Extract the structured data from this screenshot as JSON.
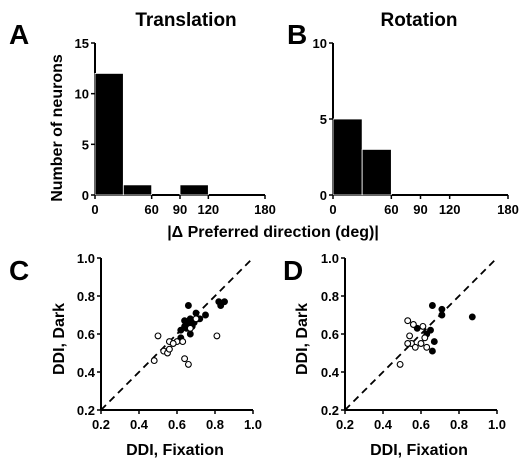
{
  "panels": {
    "a": {
      "letter": "A",
      "title": "Translation"
    },
    "b": {
      "letter": "B",
      "title": "Rotation"
    },
    "c": {
      "letter": "C"
    },
    "d": {
      "letter": "D"
    }
  },
  "labels": {
    "hist_ylabel": "Number of neurons",
    "hist_xlabel": "|Δ Preferred direction (deg)|",
    "scatter_xlabel": "DDI, Fixation",
    "scatter_ylabel": "DDI, Dark"
  },
  "chart_data": [
    {
      "panel": "A",
      "type": "bar",
      "title": "Translation",
      "xlabel": "|Δ Preferred direction (deg)|",
      "ylabel": "Number of neurons",
      "bin_width": 30,
      "bins": [
        {
          "start": 0,
          "end": 30,
          "count": 12
        },
        {
          "start": 30,
          "end": 60,
          "count": 1
        },
        {
          "start": 60,
          "end": 90,
          "count": 0
        },
        {
          "start": 90,
          "end": 120,
          "count": 1
        },
        {
          "start": 120,
          "end": 150,
          "count": 0
        },
        {
          "start": 150,
          "end": 180,
          "count": 0
        }
      ],
      "xlim": [
        0,
        180
      ],
      "ylim": [
        0,
        15
      ],
      "xticks": [
        "0",
        "60",
        "90",
        "120",
        "180"
      ],
      "xtick_values": [
        0,
        60,
        90,
        120,
        180
      ],
      "yticks": [
        "0",
        "5",
        "10",
        "15"
      ],
      "ytick_values": [
        0,
        5,
        10,
        15
      ],
      "bar_color": "#000000"
    },
    {
      "panel": "B",
      "type": "bar",
      "title": "Rotation",
      "xlabel": "|Δ Preferred direction (deg)|",
      "ylabel": "Number of neurons",
      "bin_width": 30,
      "bins": [
        {
          "start": 0,
          "end": 30,
          "count": 5
        },
        {
          "start": 30,
          "end": 60,
          "count": 3
        },
        {
          "start": 60,
          "end": 90,
          "count": 0
        },
        {
          "start": 90,
          "end": 120,
          "count": 0
        },
        {
          "start": 120,
          "end": 150,
          "count": 0
        },
        {
          "start": 150,
          "end": 180,
          "count": 0
        }
      ],
      "xlim": [
        0,
        180
      ],
      "ylim": [
        0,
        10
      ],
      "xticks": [
        "0",
        "60",
        "90",
        "120",
        "180"
      ],
      "xtick_values": [
        0,
        60,
        90,
        120,
        180
      ],
      "yticks": [
        "0",
        "5",
        "10"
      ],
      "ytick_values": [
        0,
        5,
        10
      ],
      "bar_color": "#000000"
    },
    {
      "panel": "C",
      "type": "scatter",
      "xlabel": "DDI, Fixation",
      "ylabel": "DDI, Dark",
      "xlim": [
        0.2,
        1.0
      ],
      "ylim": [
        0.2,
        1.0
      ],
      "xticks": [
        "0.2",
        "0.4",
        "0.6",
        "0.8",
        "1.0"
      ],
      "xtick_values": [
        0.2,
        0.4,
        0.6,
        0.8,
        1.0
      ],
      "yticks": [
        "0.2",
        "0.4",
        "0.6",
        "0.8",
        "1.0"
      ],
      "ytick_values": [
        0.2,
        0.4,
        0.6,
        0.8,
        1.0
      ],
      "unity_line": true,
      "series": [
        {
          "marker": "filled",
          "points": [
            [
              0.66,
              0.75
            ],
            [
              0.7,
              0.71
            ],
            [
              0.71,
              0.68
            ],
            [
              0.69,
              0.66
            ],
            [
              0.67,
              0.68
            ],
            [
              0.66,
              0.66
            ],
            [
              0.68,
              0.64
            ],
            [
              0.65,
              0.63
            ],
            [
              0.64,
              0.64
            ],
            [
              0.67,
              0.6
            ],
            [
              0.62,
              0.62
            ],
            [
              0.64,
              0.67
            ],
            [
              0.72,
              0.68
            ],
            [
              0.75,
              0.7
            ],
            [
              0.83,
              0.75
            ],
            [
              0.85,
              0.77
            ],
            [
              0.82,
              0.77
            ],
            [
              0.62,
              0.58
            ]
          ]
        },
        {
          "marker": "open",
          "points": [
            [
              0.5,
              0.59
            ],
            [
              0.48,
              0.46
            ],
            [
              0.53,
              0.51
            ],
            [
              0.55,
              0.5
            ],
            [
              0.56,
              0.52
            ],
            [
              0.56,
              0.56
            ],
            [
              0.6,
              0.56
            ],
            [
              0.63,
              0.56
            ],
            [
              0.64,
              0.47
            ],
            [
              0.66,
              0.44
            ],
            [
              0.81,
              0.59
            ],
            [
              0.67,
              0.63
            ],
            [
              0.7,
              0.68
            ],
            [
              0.58,
              0.55
            ]
          ]
        }
      ]
    },
    {
      "panel": "D",
      "type": "scatter",
      "xlabel": "DDI, Fixation",
      "ylabel": "DDI, Dark",
      "xlim": [
        0.2,
        1.0
      ],
      "ylim": [
        0.2,
        1.0
      ],
      "xticks": [
        "0.2",
        "0.4",
        "0.6",
        "0.8",
        "1.0"
      ],
      "xtick_values": [
        0.2,
        0.4,
        0.6,
        0.8,
        1.0
      ],
      "yticks": [
        "0.2",
        "0.4",
        "0.6",
        "0.8",
        "1.0"
      ],
      "ytick_values": [
        0.2,
        0.4,
        0.6,
        0.8,
        1.0
      ],
      "unity_line": true,
      "series": [
        {
          "marker": "filled",
          "points": [
            [
              0.66,
              0.75
            ],
            [
              0.71,
              0.73
            ],
            [
              0.71,
              0.7
            ],
            [
              0.87,
              0.69
            ],
            [
              0.65,
              0.62
            ],
            [
              0.63,
              0.6
            ],
            [
              0.58,
              0.63
            ],
            [
              0.67,
              0.56
            ],
            [
              0.66,
              0.51
            ]
          ]
        },
        {
          "marker": "open",
          "points": [
            [
              0.53,
              0.67
            ],
            [
              0.56,
              0.65
            ],
            [
              0.61,
              0.64
            ],
            [
              0.54,
              0.59
            ],
            [
              0.55,
              0.55
            ],
            [
              0.57,
              0.53
            ],
            [
              0.6,
              0.55
            ],
            [
              0.63,
              0.53
            ],
            [
              0.49,
              0.44
            ],
            [
              0.62,
              0.58
            ],
            [
              0.53,
              0.55
            ]
          ]
        }
      ]
    }
  ]
}
